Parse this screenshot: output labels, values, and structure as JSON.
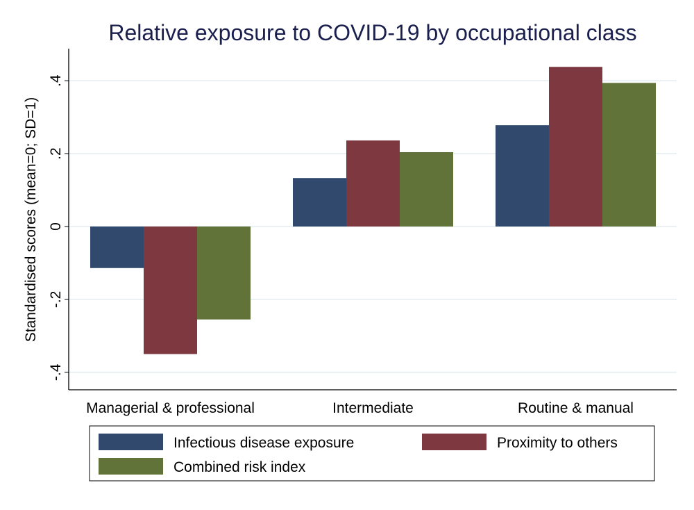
{
  "chart_data": {
    "type": "bar",
    "title": "Relative exposure to COVID-19 by occupational class",
    "xlabel": "",
    "ylabel": "Standardised scores (mean=0; SD=1)",
    "categories": [
      "Managerial & professional",
      "Intermediate",
      "Routine & manual"
    ],
    "series": [
      {
        "name": "Infectious disease exposure",
        "color": "#31496c",
        "values": [
          -0.114,
          0.133,
          0.278
        ]
      },
      {
        "name": "Proximity to others",
        "color": "#7e3840",
        "values": [
          -0.35,
          0.236,
          0.438
        ]
      },
      {
        "name": "Combined risk index",
        "color": "#62733a",
        "values": [
          -0.255,
          0.204,
          0.394
        ]
      }
    ],
    "yticks": [
      -0.4,
      -0.2,
      0,
      0.2,
      0.4
    ],
    "ytick_labels": [
      "-.4",
      "-.2",
      "0",
      ".2",
      ".4"
    ],
    "ylim": [
      -0.448,
      0.488
    ],
    "grid": true,
    "legend_placement": "bottom",
    "title_color": "#1a1f4d",
    "grid_color": "#eaf0f3"
  }
}
